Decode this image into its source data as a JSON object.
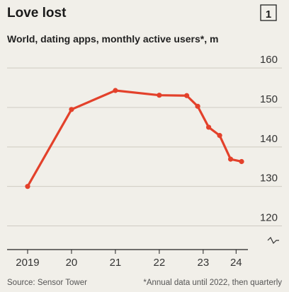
{
  "chart_data": {
    "type": "line",
    "title": "Love lost",
    "badge": "1",
    "subtitle": "World, dating apps, monthly active users*, m",
    "source": "Source: Sensor Tower",
    "note": "*Annual data until 2022, then quarterly",
    "x": [
      2019,
      2020,
      2021,
      2022,
      2022.625,
      2022.875,
      2023.125,
      2023.375,
      2023.625,
      2023.875
    ],
    "series": [
      {
        "name": "Monthly active users",
        "color": "#e3412b",
        "values": [
          130,
          149.5,
          154.3,
          153.1,
          153,
          150.3,
          145,
          142.9,
          136.9,
          136.3
        ]
      }
    ],
    "xlim": [
      2018.5,
      2024.1
    ],
    "xticks": [
      {
        "value": 2019,
        "label": "2019"
      },
      {
        "value": 2020,
        "label": "20"
      },
      {
        "value": 2021,
        "label": "21"
      },
      {
        "value": 2022,
        "label": "22"
      },
      {
        "value": 2023,
        "label": "23"
      },
      {
        "value": 2023.75,
        "label": "24"
      }
    ],
    "ylim": [
      114,
      162
    ],
    "yticks": [
      120,
      130,
      140,
      150,
      160
    ],
    "grid": true
  }
}
